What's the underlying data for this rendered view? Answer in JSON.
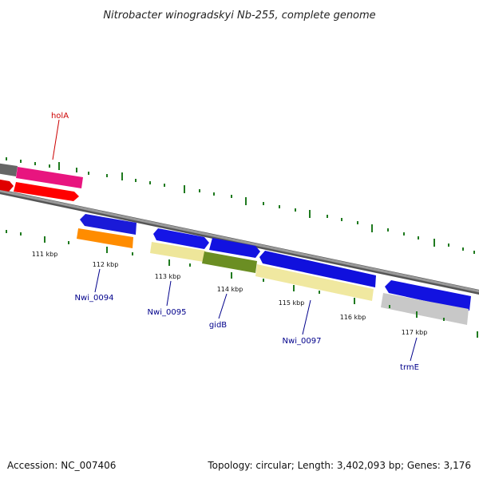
{
  "header": {
    "title": "Nitrobacter winogradskyi Nb-255, complete genome"
  },
  "footer": {
    "accession": "Accession: NC_007406",
    "topology": "Topology: circular; Length: 3,402,093 bp; Genes: 3,176"
  },
  "colors": {
    "backbone": "#888888",
    "tick": "#1f7a1f",
    "forward_cds": "#1010e0",
    "pseudo_cds": "#f0e8a0",
    "gidB_gene": "#6b8e23",
    "orange_gene": "#ff8c00",
    "red_gene": "#ff0000",
    "pink_gene": "#ff1493",
    "grey_gene": "#c0c0c0",
    "label_black": "#111111",
    "label_blue": "#00008b",
    "label_red": "#cc0000"
  },
  "ticks": {
    "outer_labels": [
      "111 kbp",
      "112 kbp",
      "113 kbp",
      "114 kbp",
      "115 kbp",
      "116 kbp",
      "117 kbp"
    ]
  },
  "genes": [
    {
      "label": "holA",
      "color": "red",
      "icon": "callout-line"
    },
    {
      "label": "Nwi_0094",
      "color": "blue",
      "icon": "callout-line"
    },
    {
      "label": "Nwi_0095",
      "color": "blue",
      "icon": "callout-line"
    },
    {
      "label": "gidB",
      "color": "blue",
      "icon": "callout-line"
    },
    {
      "label": "Nwi_0097",
      "color": "blue",
      "icon": "callout-line"
    },
    {
      "label": "trmE",
      "color": "blue",
      "icon": "callout-line"
    }
  ]
}
